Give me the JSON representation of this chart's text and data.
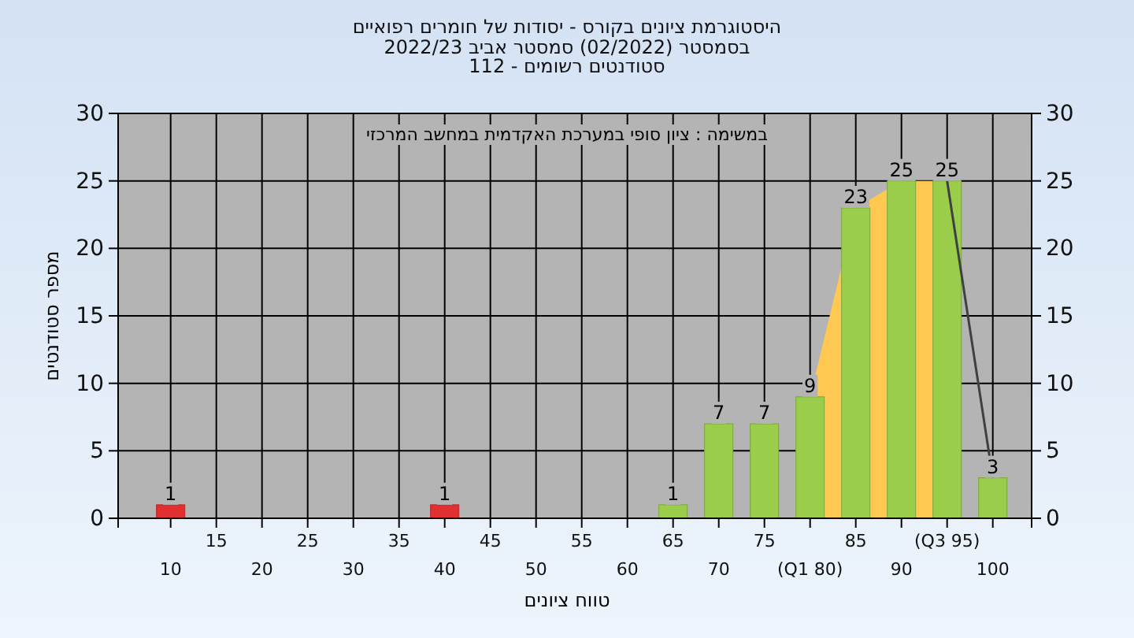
{
  "chart_data": {
    "type": "bar",
    "title": "היסטוגרמת ציונים בקורס - יסודות של חומרים רפואיים",
    "subtitle": "בסמסטר  (02/2022)  סמסטר אביב 2022/23\nסטודנטים רשומים - 112",
    "xlabel": "טווח ציונים",
    "ylabel": "מספר סטודנטים",
    "annotations": [
      "במשימה : ציון סופי במערכת האקדמית במחשב המרכזי"
    ],
    "categories": [
      "10",
      "15",
      "20",
      "25",
      "30",
      "35",
      "40",
      "45",
      "50",
      "55",
      "60",
      "65",
      "70",
      "75",
      "(Q1 80)",
      "85",
      "90",
      "(Q3 95)",
      "100"
    ],
    "series": [
      {
        "type": "area",
        "color": "#ffc850",
        "values": [
          null,
          null,
          null,
          null,
          null,
          null,
          null,
          null,
          null,
          null,
          null,
          null,
          null,
          null,
          9,
          23,
          25,
          25,
          null
        ]
      },
      {
        "type": "line",
        "color": "#404040",
        "values": [
          null,
          null,
          null,
          null,
          null,
          null,
          null,
          null,
          null,
          null,
          null,
          null,
          null,
          null,
          null,
          null,
          null,
          25,
          3
        ]
      },
      {
        "values": [
          1,
          0,
          0,
          0,
          0,
          0,
          1,
          0,
          0,
          0,
          0,
          1,
          7,
          7,
          9,
          23,
          25,
          25,
          3
        ],
        "value_labels": [
          "1",
          null,
          null,
          null,
          null,
          null,
          "1",
          null,
          null,
          null,
          null,
          "1",
          "7",
          "7",
          "9",
          "23",
          "25",
          "25",
          "3"
        ],
        "colors": [
          "#e03030",
          "#9acd4a",
          "#9acd4a",
          "#9acd4a",
          "#9acd4a",
          "#9acd4a",
          "#e03030",
          "#9acd4a",
          "#9acd4a",
          "#9acd4a",
          "#9acd4a",
          "#9acd4a",
          "#9acd4a",
          "#9acd4a",
          "#9acd4a",
          "#9acd4a",
          "#9acd4a",
          "#9acd4a",
          "#9acd4a"
        ]
      }
    ],
    "ylim": [
      0,
      30
    ],
    "yticks": [
      0,
      5,
      10,
      15,
      20,
      25,
      30
    ],
    "y2lim": [
      0,
      30
    ],
    "y2ticks": [
      0,
      5,
      10,
      15,
      20,
      25,
      30
    ],
    "grid": true
  }
}
